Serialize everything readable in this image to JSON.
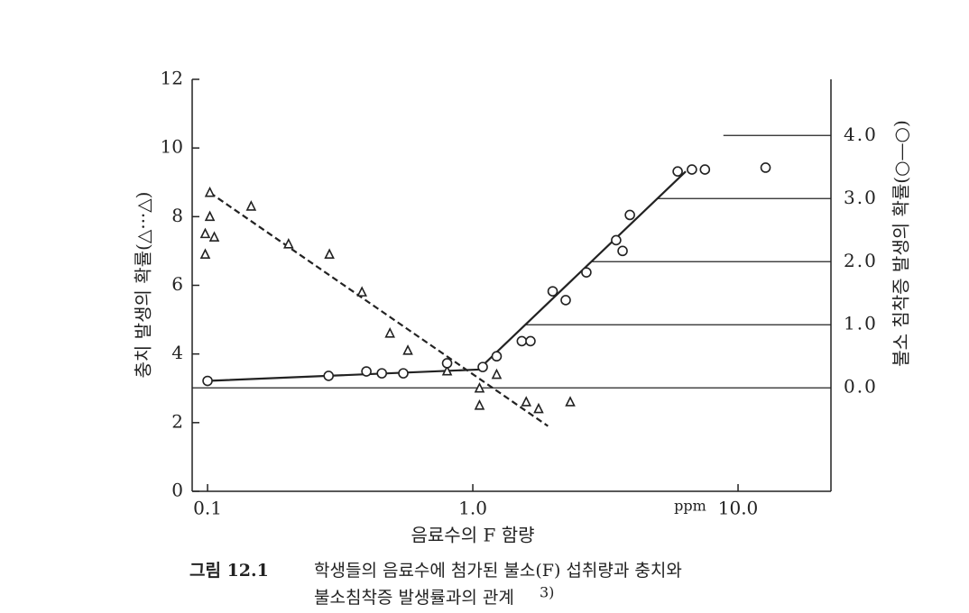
{
  "chart_data": {
    "type": "scatter",
    "x_label": "음료수의 F  함량",
    "x_unit": "ppm",
    "y_label": "충치 발생의 확률(△···△)",
    "y2_label": "불소 침착증 발생의 확률(○—○)",
    "caption": {
      "label": "그림 12.1",
      "lines": [
        "학생들의 음료수에 첨가된 불소(F) 섭취량과 충치와",
        "불소침착증 발생률과의 관계"
      ],
      "ref": "3)"
    },
    "xscale": "log",
    "xlim": [
      0.0875,
      22.4
    ],
    "xticks": [
      {
        "value": 0.1,
        "label": "0.1"
      },
      {
        "value": 1,
        "label": "1.0"
      },
      {
        "value": 10,
        "label": "10.0"
      }
    ],
    "ylim": [
      0,
      12
    ],
    "yticks": [
      0,
      2,
      4,
      6,
      8,
      10,
      12
    ],
    "y2lim": [
      -1.64,
      4.89
    ],
    "y2ticks": [
      {
        "value": 0,
        "label": "0.0"
      },
      {
        "value": 1,
        "label": "1.0"
      },
      {
        "value": 2,
        "label": "2.0"
      },
      {
        "value": 3,
        "label": "3.0"
      },
      {
        "value": 4,
        "label": "4.0"
      }
    ],
    "y2_reference_lines": true,
    "series": [
      {
        "marker": "triangle",
        "color": "#222222",
        "x": [
          0.102,
          0.102,
          0.106,
          0.098,
          0.098,
          0.146,
          0.202,
          0.288,
          0.382,
          0.487,
          0.569,
          0.8,
          1.06,
          1.06,
          1.23,
          1.59,
          1.77,
          2.33
        ],
        "values": [
          8.7,
          8.0,
          7.4,
          7.5,
          6.9,
          8.3,
          7.2,
          6.9,
          5.8,
          4.6,
          4.1,
          3.5,
          3.0,
          2.5,
          3.4,
          2.6,
          2.4,
          2.6
        ]
      },
      {
        "marker": "circle",
        "color": "#222222",
        "axis": "y2",
        "x": [
          0.1,
          0.286,
          0.397,
          0.454,
          0.547,
          0.8,
          1.09,
          1.23,
          1.53,
          1.65,
          2.0,
          2.24,
          2.68,
          3.47,
          3.67,
          3.91,
          5.92,
          6.7,
          7.5,
          12.7
        ],
        "values": [
          0.11,
          0.19,
          0.26,
          0.23,
          0.23,
          0.39,
          0.33,
          0.5,
          0.74,
          0.74,
          1.53,
          1.39,
          1.83,
          2.34,
          2.17,
          2.74,
          3.43,
          3.46,
          3.46,
          3.49
        ]
      }
    ],
    "trend_lines": [
      {
        "style": "dashed",
        "x": [
          0.102,
          1.92
        ],
        "values": [
          8.7,
          1.9
        ]
      },
      {
        "style": "solid",
        "axis": "y2",
        "x": [
          0.1,
          1.05,
          6.35
        ],
        "values": [
          0.11,
          0.29,
          3.43
        ]
      }
    ]
  }
}
